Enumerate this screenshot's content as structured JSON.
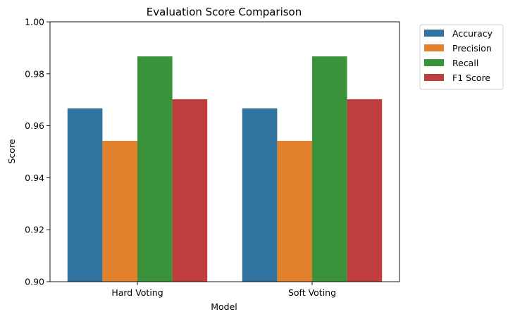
{
  "chart_data": {
    "type": "bar",
    "title": "Evaluation Score Comparison",
    "xlabel": "Model",
    "ylabel": "Score",
    "ylim": [
      0.9,
      1.0
    ],
    "yticks": [
      0.9,
      0.92,
      0.94,
      0.96,
      0.98,
      1.0
    ],
    "ytick_labels": [
      "0.90",
      "0.92",
      "0.94",
      "0.96",
      "0.98",
      "1.00"
    ],
    "categories": [
      "Hard Voting",
      "Soft Voting"
    ],
    "series": [
      {
        "name": "Accuracy",
        "color": "#3274a1",
        "values": [
          0.9667,
          0.9667
        ]
      },
      {
        "name": "Precision",
        "color": "#e1812c",
        "values": [
          0.9542,
          0.9542
        ]
      },
      {
        "name": "Recall",
        "color": "#3a923a",
        "values": [
          0.9867,
          0.9867
        ]
      },
      {
        "name": "F1 Score",
        "color": "#c03d3e",
        "values": [
          0.9702,
          0.9702
        ]
      }
    ],
    "legend_position": "outside-top-right",
    "grid": false
  }
}
